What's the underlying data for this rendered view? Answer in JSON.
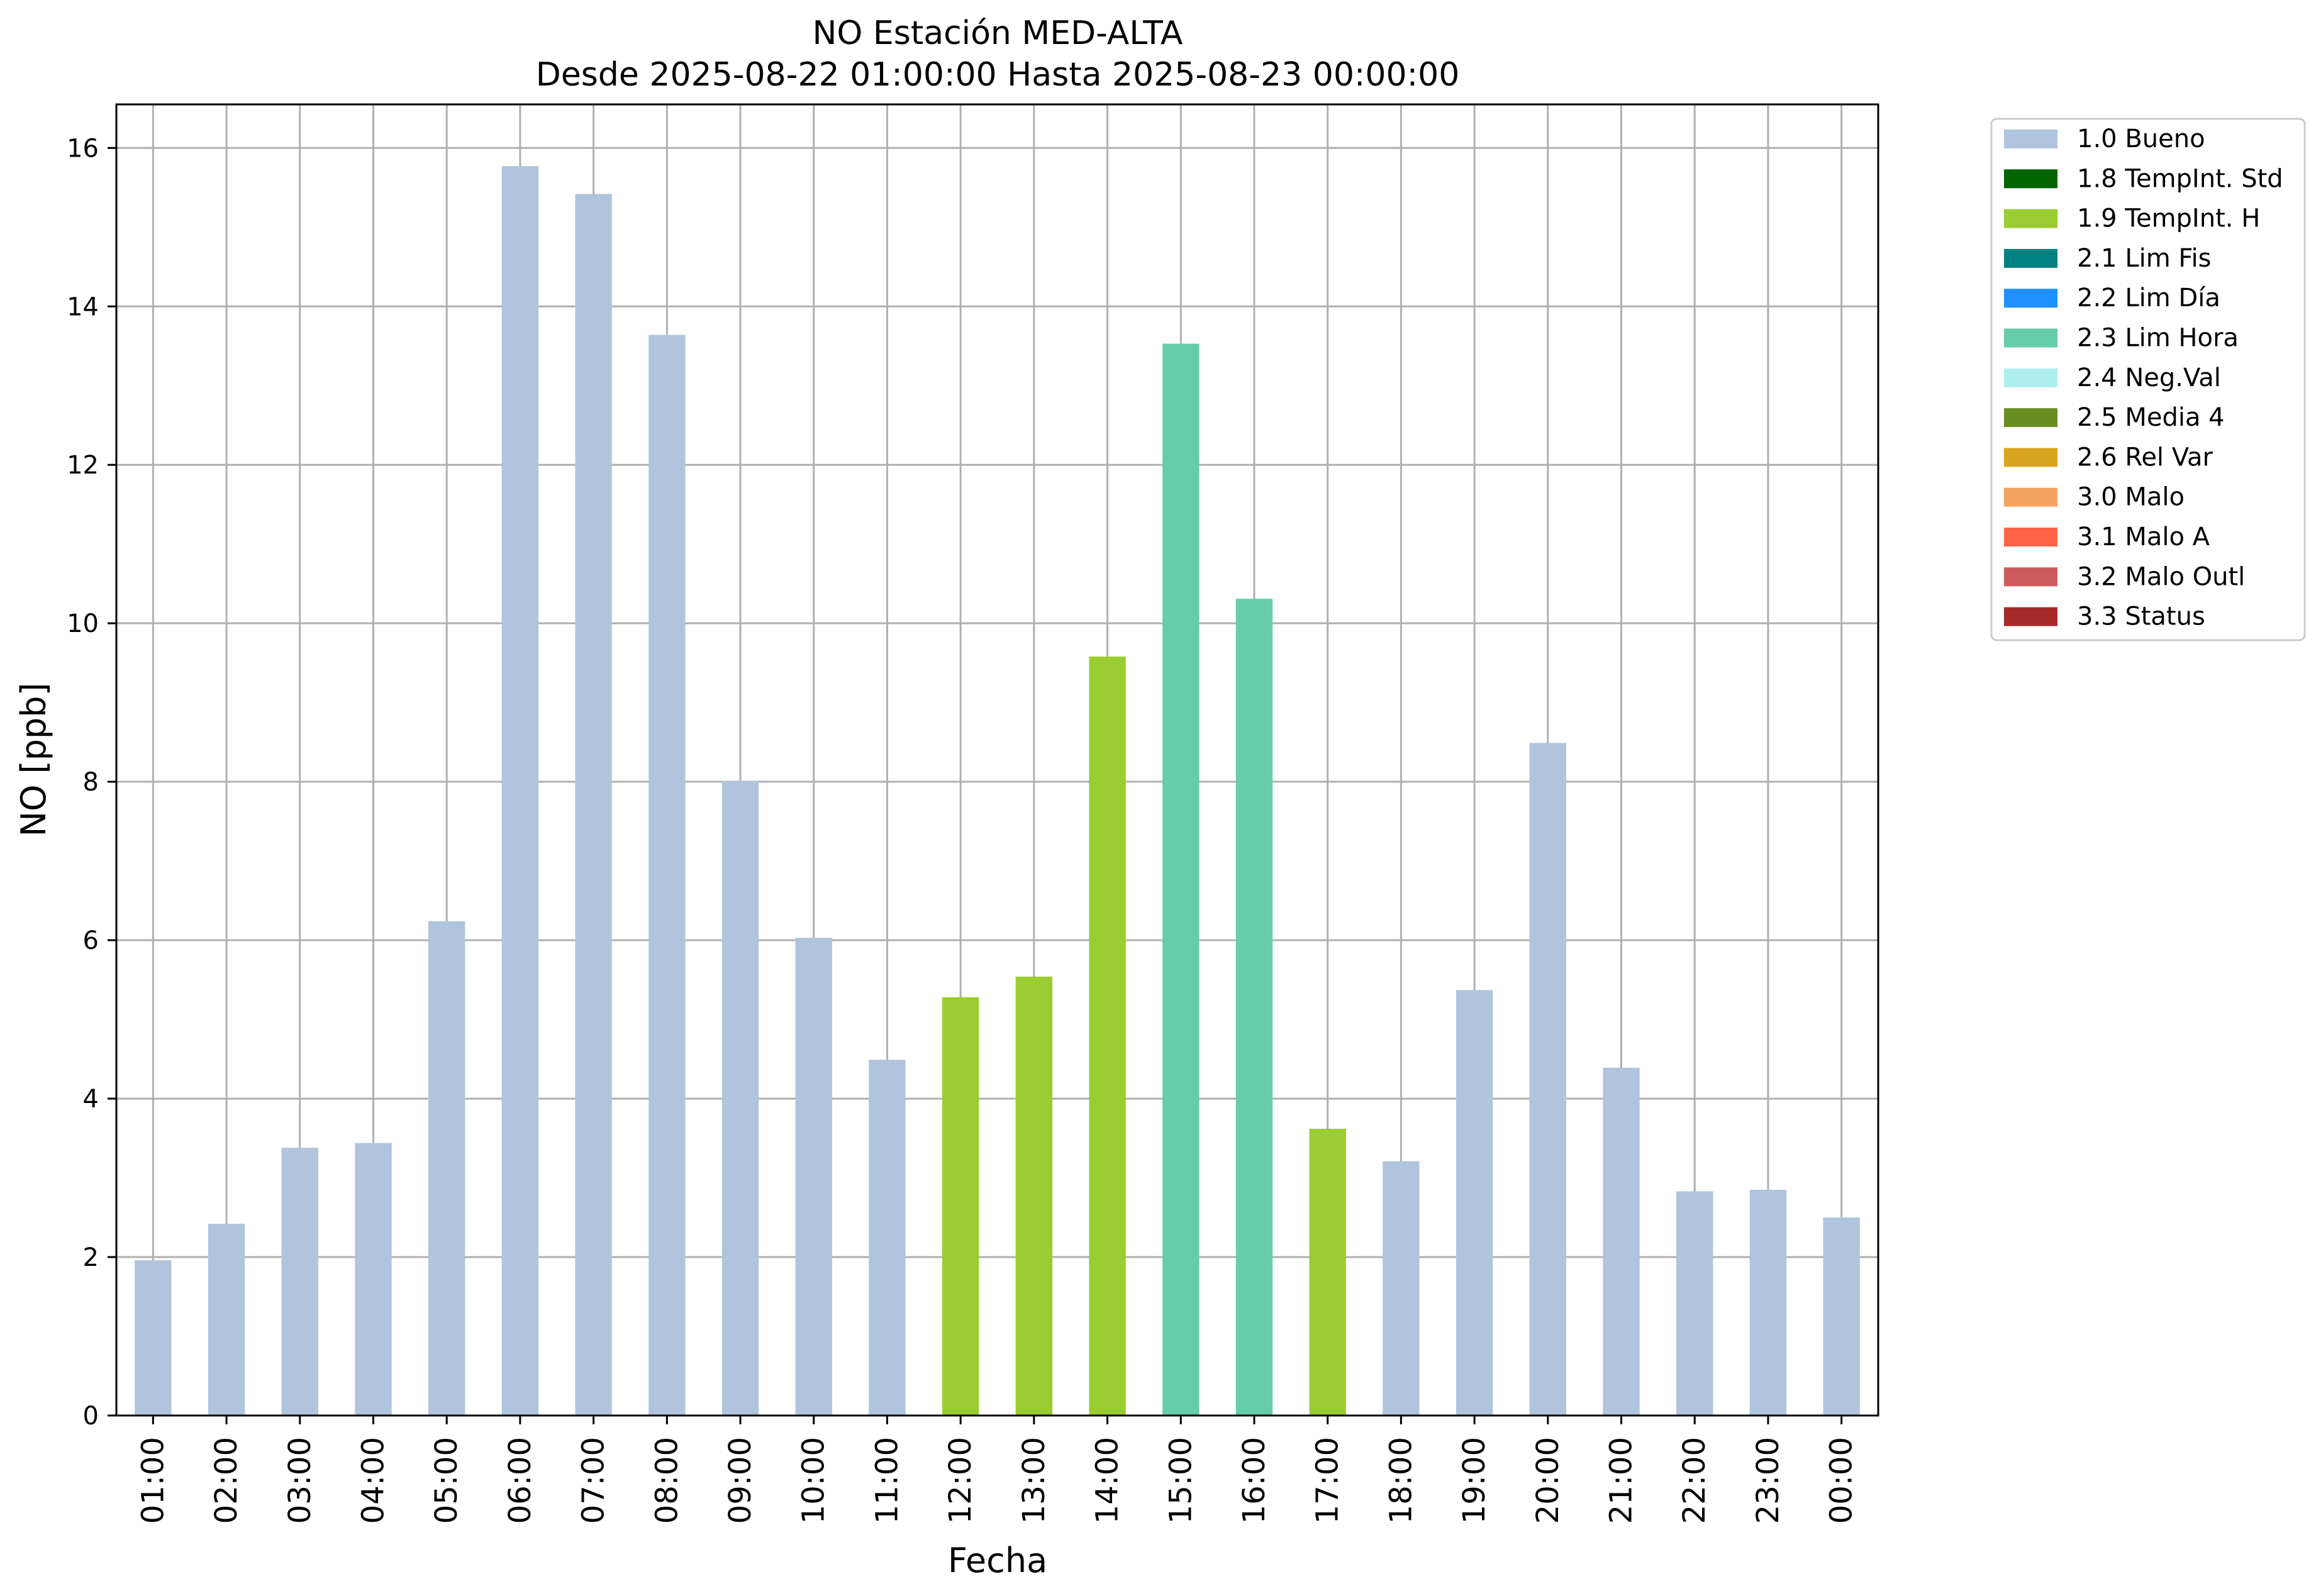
{
  "chart_data": {
    "type": "bar",
    "title": "NO Estación MED-ALTA",
    "subtitle": "Desde 2025-08-22 01:00:00 Hasta 2025-08-23 00:00:00",
    "xlabel": "Fecha",
    "ylabel": "NO [ppb]",
    "ylim": [
      0,
      16.55
    ],
    "yticks": [
      0,
      2,
      4,
      6,
      8,
      10,
      12,
      14,
      16
    ],
    "grid": true,
    "legend_position": "outside-top-right",
    "categories": [
      "01:00",
      "02:00",
      "03:00",
      "04:00",
      "05:00",
      "06:00",
      "07:00",
      "08:00",
      "09:00",
      "10:00",
      "11:00",
      "12:00",
      "13:00",
      "14:00",
      "15:00",
      "16:00",
      "17:00",
      "18:00",
      "19:00",
      "20:00",
      "21:00",
      "22:00",
      "23:00",
      "00:00"
    ],
    "values": [
      1.96,
      2.42,
      3.38,
      3.44,
      6.24,
      15.77,
      15.42,
      13.64,
      8.01,
      6.03,
      4.49,
      5.28,
      5.54,
      9.58,
      13.53,
      10.31,
      3.62,
      3.21,
      5.37,
      8.49,
      4.39,
      2.83,
      2.85,
      2.5
    ],
    "flags": [
      "1.0 Bueno",
      "1.0 Bueno",
      "1.0 Bueno",
      "1.0 Bueno",
      "1.0 Bueno",
      "1.0 Bueno",
      "1.0 Bueno",
      "1.0 Bueno",
      "1.0 Bueno",
      "1.0 Bueno",
      "1.0 Bueno",
      "1.9 TempInt. H",
      "1.9 TempInt. H",
      "1.9 TempInt. H",
      "2.3 Lim Hora",
      "2.3 Lim Hora",
      "1.9 TempInt. H",
      "1.0 Bueno",
      "1.0 Bueno",
      "1.0 Bueno",
      "1.0 Bueno",
      "1.0 Bueno",
      "1.0 Bueno",
      "1.0 Bueno"
    ],
    "legend": [
      {
        "label": "1.0 Bueno",
        "color": "#b0c4de"
      },
      {
        "label": "1.8 TempInt. Std",
        "color": "#006400"
      },
      {
        "label": "1.9 TempInt. H",
        "color": "#9acd32"
      },
      {
        "label": "2.1 Lim Fis",
        "color": "#008080"
      },
      {
        "label": "2.2 Lim Día",
        "color": "#1e90ff"
      },
      {
        "label": "2.3 Lim Hora",
        "color": "#66cdaa"
      },
      {
        "label": "2.4 Neg.Val",
        "color": "#afeeee"
      },
      {
        "label": "2.5 Media 4",
        "color": "#6b8e23"
      },
      {
        "label": "2.6 Rel Var",
        "color": "#daa520"
      },
      {
        "label": "3.0 Malo",
        "color": "#f4a460"
      },
      {
        "label": "3.1 Malo A",
        "color": "#ff6347"
      },
      {
        "label": "3.2 Malo Outl",
        "color": "#cd5c5c"
      },
      {
        "label": "3.3 Status",
        "color": "#a52a2a"
      }
    ]
  }
}
